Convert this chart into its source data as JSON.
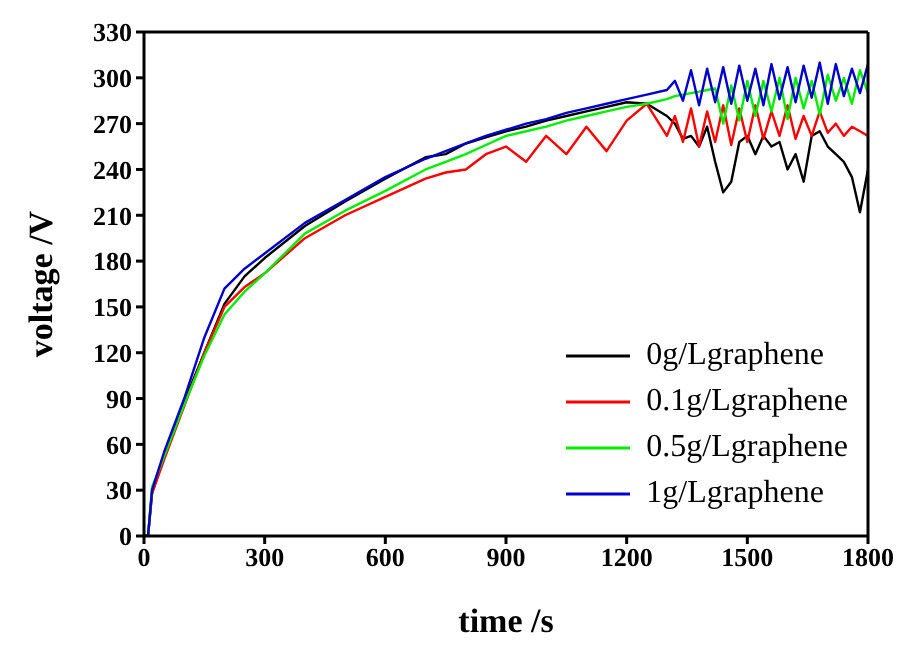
{
  "chart_data": {
    "type": "line",
    "xlabel": "time /s",
    "ylabel": "voltage /V",
    "xlim": [
      0,
      1800
    ],
    "xticks": [
      0,
      300,
      600,
      900,
      1200,
      1500,
      1800
    ],
    "ylim": [
      0,
      330
    ],
    "yticks": [
      0,
      30,
      60,
      90,
      120,
      150,
      180,
      210,
      240,
      270,
      300,
      330
    ],
    "grid": false,
    "legend": "bottom right",
    "marker": "none",
    "line_style": "solid",
    "x": [
      0,
      10,
      20,
      50,
      100,
      150,
      200,
      250,
      300,
      400,
      500,
      600,
      700,
      750,
      800,
      850,
      900,
      950,
      1000,
      1050,
      1100,
      1150,
      1200,
      1250,
      1300,
      1320,
      1340,
      1360,
      1380,
      1400,
      1420,
      1440,
      1460,
      1480,
      1500,
      1520,
      1540,
      1560,
      1580,
      1600,
      1620,
      1640,
      1660,
      1680,
      1700,
      1720,
      1740,
      1760,
      1780,
      1800
    ],
    "series": [
      {
        "name": "0g/Lgraphene",
        "color": "#000000",
        "values": [
          0,
          0,
          28,
          52,
          88,
          120,
          152,
          170,
          182,
          203,
          219,
          234,
          248,
          250,
          257,
          261,
          265,
          268,
          272,
          275,
          278,
          281,
          284,
          283,
          275,
          270,
          260,
          262,
          255,
          268,
          245,
          225,
          232,
          258,
          262,
          250,
          262,
          255,
          258,
          240,
          250,
          232,
          262,
          265,
          255,
          250,
          245,
          235,
          212,
          240
        ]
      },
      {
        "name": "0.1g/Lgraphene",
        "color": "#ff0000",
        "values": [
          0,
          0,
          28,
          50,
          85,
          120,
          150,
          163,
          172,
          195,
          210,
          222,
          234,
          238,
          240,
          250,
          255,
          245,
          262,
          250,
          268,
          252,
          272,
          283,
          262,
          275,
          258,
          280,
          255,
          278,
          258,
          282,
          256,
          280,
          258,
          282,
          260,
          278,
          262,
          282,
          260,
          275,
          262,
          278,
          264,
          270,
          262,
          268,
          265,
          262
        ]
      },
      {
        "name": "0.5g/Lgraphene",
        "color": "#00ee00",
        "values": [
          0,
          0,
          32,
          52,
          86,
          118,
          145,
          160,
          172,
          198,
          213,
          226,
          240,
          245,
          250,
          256,
          262,
          265,
          268,
          272,
          275,
          278,
          281,
          283,
          286,
          288,
          289,
          290,
          291,
          292,
          293,
          270,
          295,
          272,
          298,
          275,
          298,
          278,
          300,
          273,
          300,
          280,
          298,
          276,
          302,
          285,
          300,
          283,
          305,
          290
        ]
      },
      {
        "name": "1g/Lgraphene",
        "color": "#0000cc",
        "values": [
          0,
          0,
          30,
          55,
          90,
          130,
          162,
          175,
          185,
          205,
          220,
          235,
          247,
          252,
          257,
          262,
          266,
          270,
          273,
          277,
          280,
          283,
          286,
          289,
          292,
          298,
          285,
          305,
          282,
          306,
          284,
          307,
          283,
          308,
          285,
          306,
          282,
          309,
          286,
          307,
          284,
          308,
          287,
          310,
          283,
          309,
          288,
          306,
          290,
          309
        ]
      }
    ]
  }
}
